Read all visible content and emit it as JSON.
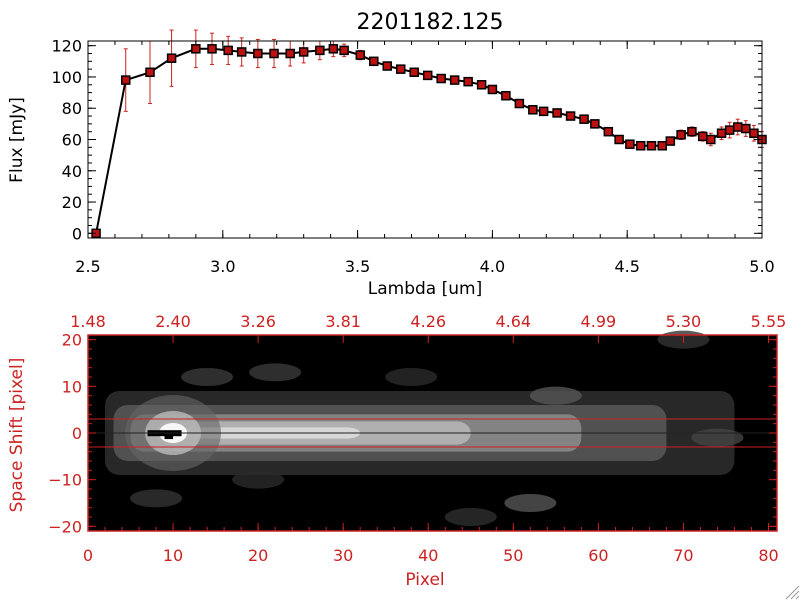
{
  "colors": {
    "axis_red": "#cc2222",
    "marker_fill": "#bb1111",
    "errorbar": "#cc2222",
    "line": "#000000",
    "image_bg": "#000000",
    "band_line": "#cc2222"
  },
  "chart_data": [
    {
      "type": "line",
      "title": "2201182.125",
      "xlabel": "Lambda [um]",
      "ylabel": "Flux [mJy]",
      "xlim": [
        2.5,
        5.0
      ],
      "ylim": [
        -3,
        123
      ],
      "xticks": [
        2.5,
        3.0,
        3.5,
        4.0,
        4.5,
        5.0
      ],
      "xtick_labels": [
        "2.5",
        "3.0",
        "3.5",
        "4.0",
        "4.5",
        "5.0"
      ],
      "yticks": [
        0,
        20,
        40,
        60,
        80,
        100,
        120
      ],
      "ytick_labels": [
        "0",
        "20",
        "40",
        "60",
        "80",
        "100",
        "120"
      ],
      "grid": false,
      "series": [
        {
          "x": [
            2.53,
            2.64,
            2.73,
            2.81,
            2.9,
            2.96,
            3.02,
            3.07,
            3.13,
            3.19,
            3.25,
            3.3,
            3.36,
            3.41,
            3.45,
            3.51,
            3.56,
            3.61,
            3.66,
            3.71,
            3.76,
            3.81,
            3.86,
            3.91,
            3.96,
            4.0,
            4.05,
            4.1,
            4.15,
            4.19,
            4.24,
            4.29,
            4.34,
            4.38,
            4.43,
            4.47,
            4.51,
            4.55,
            4.59,
            4.63,
            4.66,
            4.7,
            4.74,
            4.78,
            4.81,
            4.85,
            4.88,
            4.91,
            4.94,
            4.97,
            5.0
          ],
          "y": [
            0,
            98,
            103,
            112,
            118,
            118,
            117,
            116,
            115,
            115,
            115,
            116,
            117,
            118,
            117,
            114,
            110,
            107,
            105,
            103,
            101,
            99,
            98,
            97,
            95,
            92,
            88,
            83,
            79,
            78,
            77,
            75,
            73,
            70,
            65,
            60,
            57,
            56,
            56,
            56,
            59,
            63,
            65,
            62,
            60,
            64,
            66,
            68,
            67,
            64,
            60
          ],
          "yerr": [
            0,
            20,
            20,
            18,
            12,
            10,
            9,
            9,
            9,
            9,
            8,
            7,
            6,
            5,
            4,
            3,
            2,
            2,
            2,
            2,
            2,
            2,
            2,
            2,
            2,
            2,
            2,
            2,
            2,
            2,
            2,
            2,
            2,
            2,
            2,
            2,
            2,
            2,
            2,
            2,
            2,
            3,
            3,
            3,
            4,
            4,
            5,
            5,
            5,
            5,
            5
          ]
        }
      ]
    },
    {
      "type": "heatmap",
      "xlabel": "Pixel",
      "ylabel": "Space Shift [pixel]",
      "xlim": [
        0,
        81
      ],
      "ylim": [
        -21,
        21
      ],
      "xticks": [
        0,
        10,
        20,
        30,
        40,
        50,
        60,
        70,
        80
      ],
      "xtick_labels": [
        "0",
        "10",
        "20",
        "30",
        "40",
        "50",
        "60",
        "70",
        "80"
      ],
      "yticks": [
        -20,
        -10,
        0,
        10,
        20
      ],
      "ytick_labels": [
        "−20",
        "−10",
        "0",
        "10",
        "20"
      ],
      "top_tick_labels": [
        "1.48",
        "2.40",
        "3.26",
        "3.81",
        "4.26",
        "4.64",
        "4.99",
        "5.30",
        "5.55"
      ],
      "band_lines": [
        3,
        -3
      ],
      "colormap": "grayscale"
    }
  ]
}
